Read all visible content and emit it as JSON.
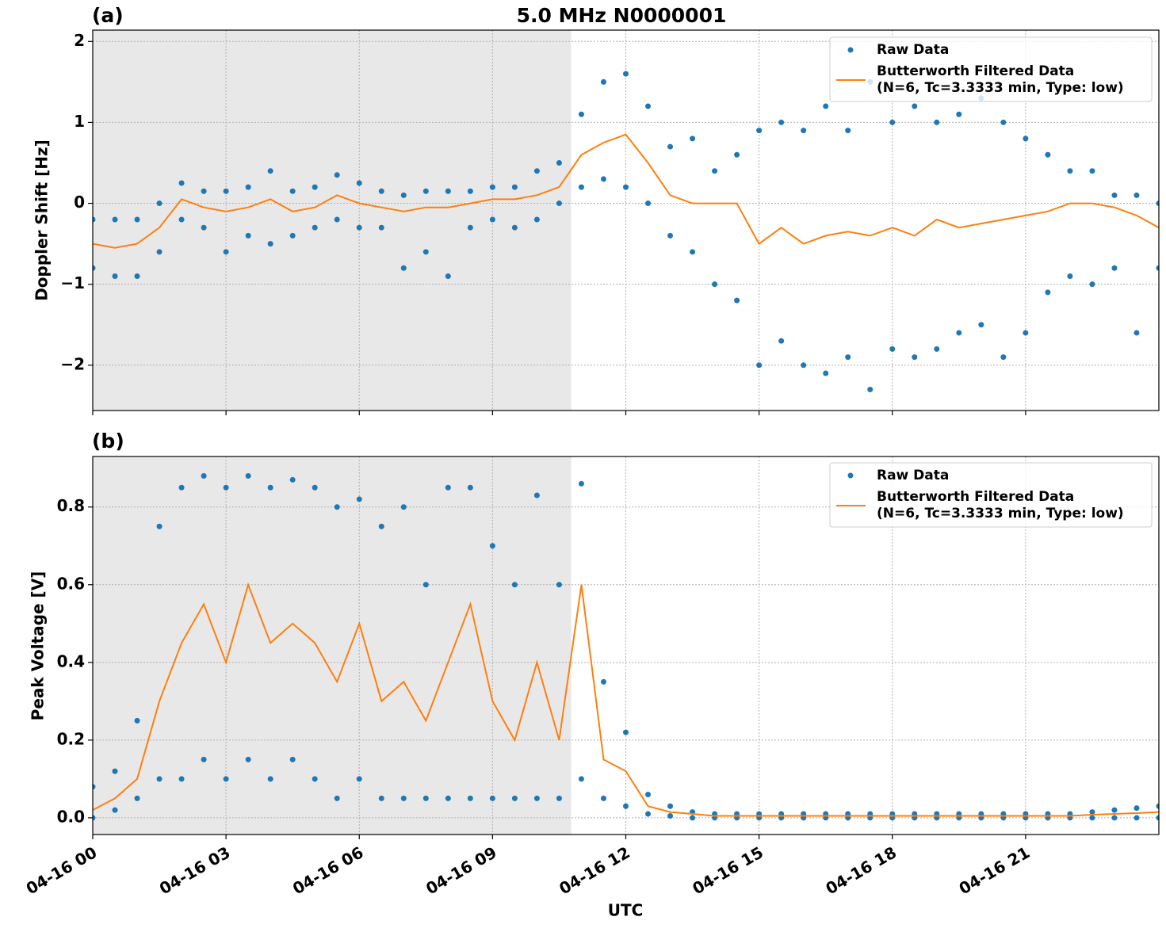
{
  "chart_data": [
    {
      "type": "scatter-line",
      "title": "5.0 MHz N0000001",
      "panel_label": "(a)",
      "ylabel": "Doppler Shift [Hz]",
      "xlim": [
        0,
        24
      ],
      "ylim": [
        -2.56,
        2.14
      ],
      "yticks": [
        {
          "value": -2,
          "label": "−2"
        },
        {
          "value": -1,
          "label": "−1"
        },
        0,
        1,
        2
      ],
      "shaded_span": [
        0,
        10.77
      ],
      "grid": true,
      "legend": "upper right",
      "series": [
        {
          "name": "Raw Data",
          "color": "#1f77b4",
          "style": "points",
          "x": [
            0,
            0,
            0.5,
            0.5,
            1,
            1,
            1.5,
            1.5,
            2,
            2,
            2.5,
            2.5,
            3,
            3,
            3.5,
            3.5,
            4,
            4,
            4.5,
            4.5,
            5,
            5,
            5.5,
            5.5,
            6,
            6,
            6.5,
            6.5,
            7,
            7,
            7.5,
            7.5,
            8,
            8,
            8.5,
            8.5,
            9,
            9,
            9.5,
            9.5,
            10,
            10,
            10.5,
            10.5,
            11,
            11,
            11.5,
            11.5,
            12,
            12,
            12.5,
            12.5,
            13,
            13,
            13.5,
            13.5,
            14,
            14,
            14.5,
            14.5,
            15,
            15,
            15.5,
            15.5,
            16,
            16,
            16.5,
            16.5,
            17,
            17,
            17.5,
            17.5,
            18,
            18,
            18.5,
            18.5,
            19,
            19,
            19.5,
            19.5,
            20,
            20,
            20.5,
            20.5,
            21,
            21,
            21.5,
            21.5,
            22,
            22,
            22.5,
            22.5,
            23,
            23,
            23.5,
            23.5,
            24,
            24
          ],
          "values": [
            -0.8,
            -0.2,
            -0.9,
            -0.2,
            -0.9,
            -0.2,
            -0.6,
            0,
            -0.2,
            0.25,
            -0.3,
            0.15,
            -0.6,
            0.15,
            -0.4,
            0.2,
            -0.5,
            0.4,
            -0.4,
            0.15,
            -0.3,
            0.2,
            -0.2,
            0.35,
            -0.3,
            0.25,
            -0.3,
            0.15,
            -0.8,
            0.1,
            -0.6,
            0.15,
            -0.9,
            0.15,
            -0.3,
            0.15,
            -0.2,
            0.2,
            -0.3,
            0.2,
            -0.2,
            0.4,
            0,
            0.5,
            0.2,
            1.1,
            0.3,
            1.5,
            0.2,
            1.6,
            0,
            1.2,
            -0.4,
            0.7,
            -0.6,
            0.8,
            -1,
            0.4,
            -1.2,
            0.6,
            -2,
            0.9,
            -1.7,
            1,
            -2,
            0.9,
            -2.1,
            1.2,
            -1.9,
            0.9,
            -2.3,
            1.5,
            -1.8,
            1,
            -1.9,
            1.2,
            -1.8,
            1,
            -1.6,
            1.1,
            -1.5,
            1.3,
            -1.9,
            1,
            -1.6,
            0.8,
            -1.1,
            0.6,
            -0.9,
            0.4,
            -1,
            0.4,
            -0.8,
            0.1,
            -1.6,
            0.1,
            -0.8,
            0
          ]
        },
        {
          "name": "Butterworth Filtered Data",
          "name_detail": "(N=6, Tc=3.3333 min, Type: low)",
          "color": "#ff7f0e",
          "style": "line",
          "x": [
            0,
            0.5,
            1,
            1.5,
            2,
            2.5,
            3,
            3.5,
            4,
            4.5,
            5,
            5.5,
            6,
            6.5,
            7,
            7.5,
            8,
            8.5,
            9,
            9.5,
            10,
            10.5,
            11,
            11.5,
            12,
            12.5,
            13,
            13.5,
            14,
            14.5,
            15,
            15.5,
            16,
            16.5,
            17,
            17.5,
            18,
            18.5,
            19,
            19.5,
            20,
            20.5,
            21,
            21.5,
            22,
            22.5,
            23,
            23.5,
            24
          ],
          "values": [
            -0.5,
            -0.55,
            -0.5,
            -0.3,
            0.05,
            -0.05,
            -0.1,
            -0.05,
            0.05,
            -0.1,
            -0.05,
            0.1,
            0,
            -0.05,
            -0.1,
            -0.05,
            -0.05,
            0,
            0.05,
            0.05,
            0.1,
            0.2,
            0.6,
            0.75,
            0.85,
            0.5,
            0.1,
            0,
            0,
            0,
            -0.5,
            -0.3,
            -0.5,
            -0.4,
            -0.35,
            -0.4,
            -0.3,
            -0.4,
            -0.2,
            -0.3,
            -0.25,
            -0.2,
            -0.15,
            -0.1,
            0,
            0,
            -0.05,
            -0.15,
            -0.3
          ]
        }
      ]
    },
    {
      "type": "scatter-line",
      "panel_label": "(b)",
      "ylabel": "Peak Voltage [V]",
      "xlabel": "UTC",
      "xlim": [
        0,
        24
      ],
      "ylim": [
        -0.043,
        0.93
      ],
      "yticks": [
        {
          "value": 0,
          "label": "0.0"
        },
        0.2,
        0.4,
        0.6,
        0.8
      ],
      "xticks": [
        {
          "value": 0,
          "label": "04-16 00"
        },
        {
          "value": 3,
          "label": "04-16 03"
        },
        {
          "value": 6,
          "label": "04-16 06"
        },
        {
          "value": 9,
          "label": "04-16 09"
        },
        {
          "value": 12,
          "label": "04-16 12"
        },
        {
          "value": 15,
          "label": "04-16 15"
        },
        {
          "value": 18,
          "label": "04-16 18"
        },
        {
          "value": 21,
          "label": "04-16 21"
        }
      ],
      "shaded_span": [
        0,
        10.77
      ],
      "grid": true,
      "legend": "upper right",
      "series": [
        {
          "name": "Raw Data",
          "color": "#1f77b4",
          "style": "points",
          "x": [
            0,
            0,
            0.5,
            0.5,
            1,
            1,
            1.5,
            1.5,
            2,
            2,
            2.5,
            2.5,
            3,
            3,
            3.5,
            3.5,
            4,
            4,
            4.5,
            4.5,
            5,
            5,
            5.5,
            5.5,
            6,
            6,
            6.5,
            6.5,
            7,
            7,
            7.5,
            7.5,
            8,
            8,
            8.5,
            8.5,
            9,
            9,
            9.5,
            9.5,
            10,
            10,
            10.5,
            10.5,
            11,
            11,
            11.5,
            11.5,
            12,
            12,
            12.5,
            12.5,
            13,
            13,
            13.5,
            13.5,
            14,
            14,
            14.5,
            14.5,
            15,
            15,
            15.5,
            15.5,
            16,
            16,
            16.5,
            16.5,
            17,
            17,
            17.5,
            17.5,
            18,
            18,
            18.5,
            18.5,
            19,
            19,
            19.5,
            19.5,
            20,
            20,
            20.5,
            20.5,
            21,
            21,
            21.5,
            21.5,
            22,
            22,
            22.5,
            22.5,
            23,
            23,
            23.5,
            23.5,
            24,
            24
          ],
          "values": [
            0,
            0.08,
            0.02,
            0.12,
            0.05,
            0.25,
            0.1,
            0.75,
            0.1,
            0.85,
            0.15,
            0.88,
            0.1,
            0.85,
            0.15,
            0.88,
            0.1,
            0.85,
            0.15,
            0.87,
            0.1,
            0.85,
            0.05,
            0.8,
            0.1,
            0.82,
            0.05,
            0.75,
            0.05,
            0.8,
            0.05,
            0.6,
            0.05,
            0.85,
            0.05,
            0.85,
            0.05,
            0.7,
            0.05,
            0.6,
            0.05,
            0.83,
            0.05,
            0.6,
            0.1,
            0.86,
            0.05,
            0.35,
            0.03,
            0.22,
            0.01,
            0.06,
            0.005,
            0.03,
            0,
            0.015,
            0,
            0.01,
            0,
            0.01,
            0,
            0.01,
            0,
            0.01,
            0,
            0.01,
            0,
            0.01,
            0,
            0.01,
            0,
            0.01,
            0,
            0.01,
            0,
            0.01,
            0,
            0.01,
            0,
            0.01,
            0,
            0.01,
            0,
            0.01,
            0,
            0.01,
            0,
            0.01,
            0,
            0.01,
            0,
            0.015,
            0,
            0.02,
            0,
            0.025,
            0,
            0.03
          ]
        },
        {
          "name": "Butterworth Filtered Data",
          "name_detail": "(N=6, Tc=3.3333 min, Type: low)",
          "color": "#ff7f0e",
          "style": "line",
          "x": [
            0,
            0.5,
            1,
            1.5,
            2,
            2.5,
            3,
            3.5,
            4,
            4.5,
            5,
            5.5,
            6,
            6.5,
            7,
            7.5,
            8,
            8.5,
            9,
            9.5,
            10,
            10.5,
            11,
            11.5,
            12,
            12.5,
            13,
            13.5,
            14,
            14.5,
            15,
            15.5,
            16,
            16.5,
            17,
            17.5,
            18,
            18.5,
            19,
            19.5,
            20,
            20.5,
            21,
            21.5,
            22,
            22.5,
            23,
            23.5,
            24
          ],
          "values": [
            0.02,
            0.05,
            0.1,
            0.3,
            0.45,
            0.55,
            0.4,
            0.6,
            0.45,
            0.5,
            0.45,
            0.35,
            0.5,
            0.3,
            0.35,
            0.25,
            0.4,
            0.55,
            0.3,
            0.2,
            0.4,
            0.2,
            0.6,
            0.15,
            0.12,
            0.03,
            0.015,
            0.01,
            0.005,
            0.005,
            0.005,
            0.005,
            0.005,
            0.005,
            0.005,
            0.005,
            0.005,
            0.005,
            0.005,
            0.005,
            0.005,
            0.005,
            0.005,
            0.005,
            0.005,
            0.008,
            0.01,
            0.012,
            0.015
          ]
        }
      ]
    }
  ]
}
